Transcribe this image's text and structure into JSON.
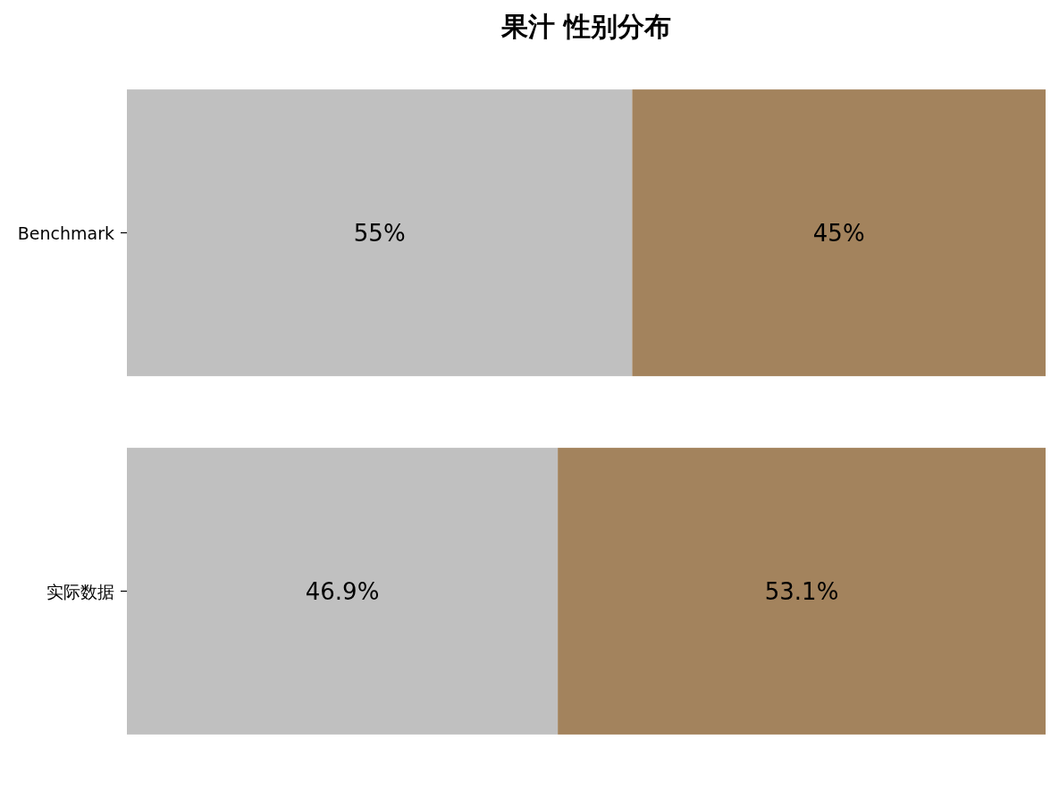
{
  "chart_data": {
    "type": "bar",
    "title": "果汁 性别分布",
    "orientation": "horizontal",
    "stacked": true,
    "categories": [
      "Benchmark",
      "实际数据"
    ],
    "series": [
      {
        "color": "#c0c0c0",
        "values": [
          55,
          46.9
        ],
        "value_labels": [
          "55%",
          "46.9%"
        ]
      },
      {
        "color": "#a3835d",
        "values": [
          45,
          53.1
        ],
        "value_labels": [
          "45%",
          "53.1%"
        ]
      }
    ],
    "xlim": [
      0,
      100
    ],
    "tick_labels": "y"
  }
}
